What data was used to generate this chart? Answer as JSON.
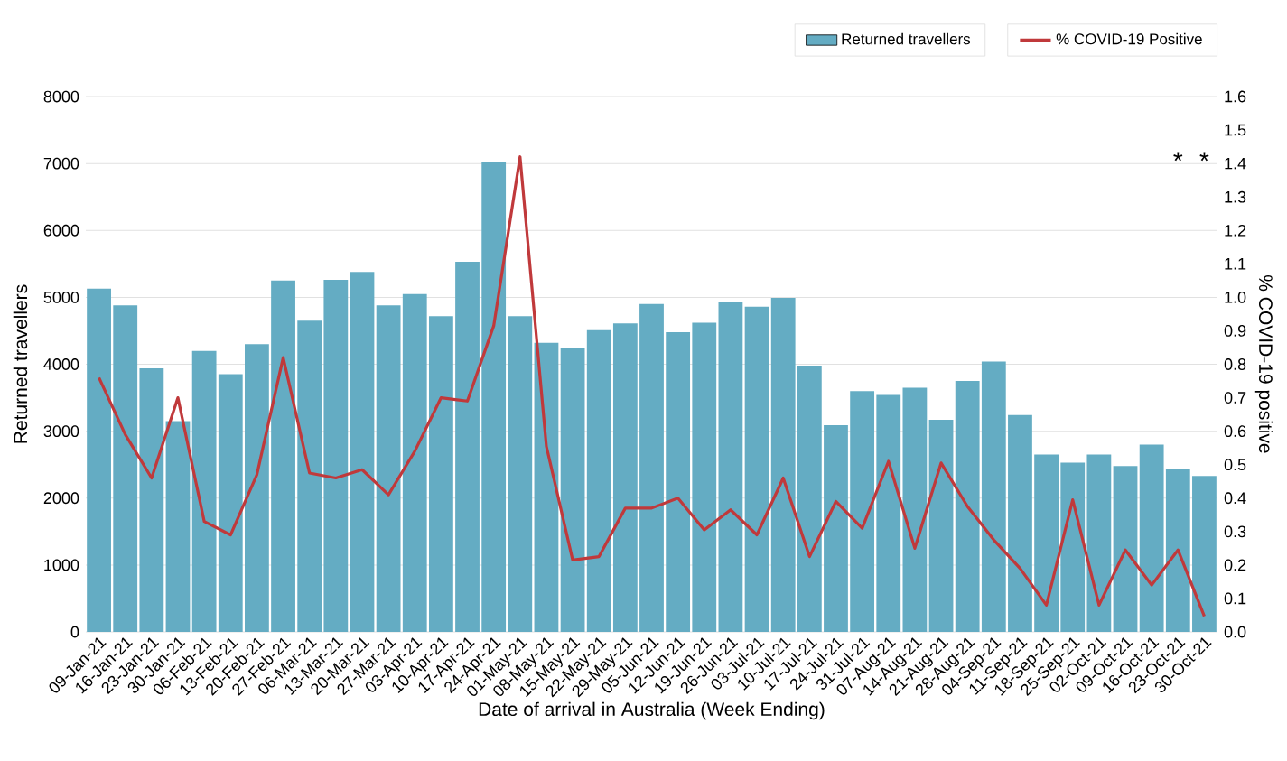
{
  "chart_data": {
    "type": "bar",
    "xlabel": "Date of arrival in Australia (Week Ending)",
    "ylabel": "Returned travellers",
    "y2label": "% COVID-19 positive",
    "categories": [
      "09-Jan-21",
      "16-Jan-21",
      "23-Jan-21",
      "30-Jan-21",
      "06-Feb-21",
      "13-Feb-21",
      "20-Feb-21",
      "27-Feb-21",
      "06-Mar-21",
      "13-Mar-21",
      "20-Mar-21",
      "27-Mar-21",
      "03-Apr-21",
      "10-Apr-21",
      "17-Apr-21",
      "24-Apr-21",
      "01-May-21",
      "08-May-21",
      "15-May-21",
      "22-May-21",
      "29-May-21",
      "05-Jun-21",
      "12-Jun-21",
      "19-Jun-21",
      "26-Jun-21",
      "03-Jul-21",
      "10-Jul-21",
      "17-Jul-21",
      "24-Jul-21",
      "31-Jul-21",
      "07-Aug-21",
      "14-Aug-21",
      "21-Aug-21",
      "28-Aug-21",
      "04-Sep-21",
      "11-Sep-21",
      "18-Sep-21",
      "25-Sep-21",
      "02-Oct-21",
      "09-Oct-21",
      "16-Oct-21",
      "23-Oct-21",
      "30-Oct-21"
    ],
    "series": [
      {
        "name": "Returned travellers",
        "color": "#64acc3",
        "values": [
          5130,
          4880,
          3940,
          3150,
          4200,
          3850,
          4300,
          5250,
          4650,
          5260,
          5380,
          4880,
          5050,
          4720,
          5530,
          7020,
          4720,
          4320,
          4240,
          4510,
          4610,
          4900,
          4480,
          4620,
          4930,
          4860,
          4990,
          3980,
          3090,
          3600,
          3540,
          3650,
          3170,
          3750,
          4040,
          3240,
          2650,
          2530,
          2650,
          2480,
          2800,
          2440,
          2330
        ]
      },
      {
        "name": "% COVID-19 Positive",
        "type": "line",
        "axis": "y2",
        "color": "#c0393b",
        "values": [
          0.76,
          0.59,
          0.46,
          0.7,
          0.33,
          0.29,
          0.47,
          0.82,
          0.475,
          0.46,
          0.485,
          0.41,
          0.54,
          0.7,
          0.69,
          0.915,
          1.42,
          0.555,
          0.215,
          0.225,
          0.37,
          0.37,
          0.4,
          0.305,
          0.365,
          0.29,
          0.46,
          0.225,
          0.39,
          0.31,
          0.51,
          0.25,
          0.505,
          0.375,
          0.275,
          0.19,
          0.08,
          0.395,
          0.08,
          0.245,
          0.14,
          0.245,
          0.047
        ]
      }
    ],
    "ylim": [
      0,
      8000
    ],
    "yticks": [
      0,
      1000,
      2000,
      3000,
      4000,
      5000,
      6000,
      7000,
      8000
    ],
    "y2lim": [
      0,
      1.6
    ],
    "y2ticks": [
      {
        "value": 0,
        "label": "0.0"
      },
      {
        "value": 0.1,
        "label": "0.1"
      },
      {
        "value": 0.2,
        "label": "0.2"
      },
      {
        "value": 0.3,
        "label": "0.3"
      },
      {
        "value": 0.4,
        "label": "0.4"
      },
      {
        "value": 0.5,
        "label": "0.5"
      },
      {
        "value": 0.6,
        "label": "0.6"
      },
      {
        "value": 0.7,
        "label": "0.7"
      },
      {
        "value": 0.8,
        "label": "0.8"
      },
      {
        "value": 0.9,
        "label": "0.9"
      },
      {
        "value": 1.0,
        "label": "1.0"
      },
      {
        "value": 1.1,
        "label": "1.1"
      },
      {
        "value": 1.2,
        "label": "1.2"
      },
      {
        "value": 1.3,
        "label": "1.3"
      },
      {
        "value": 1.4,
        "label": "1.4"
      },
      {
        "value": 1.5,
        "label": "1.5"
      },
      {
        "value": 1.6,
        "label": "1.6"
      }
    ],
    "grid": "y",
    "legend": "top right",
    "annotations": [
      "*",
      "*"
    ]
  }
}
